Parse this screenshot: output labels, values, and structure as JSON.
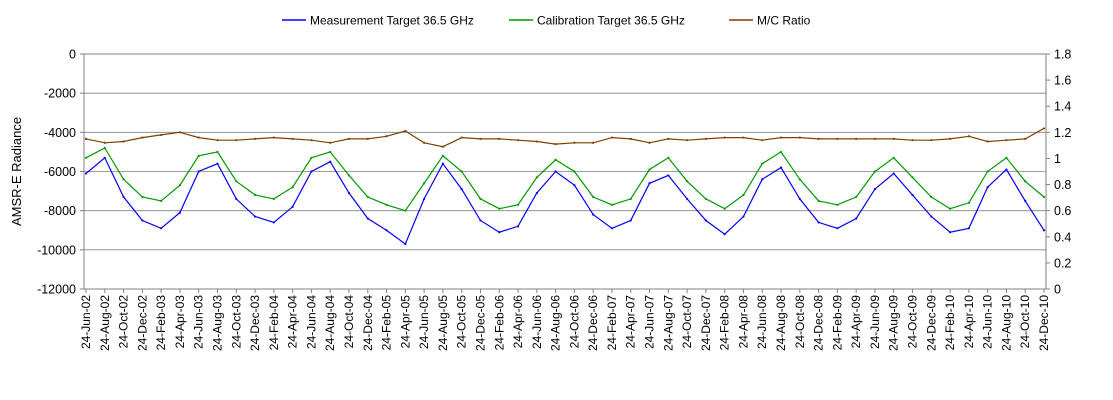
{
  "chart_data": {
    "type": "line",
    "title": "",
    "xlabel": "",
    "ylabel": "AMSR-E Radiance",
    "y2label": "",
    "ylim": [
      -12000,
      0
    ],
    "y2lim": [
      0,
      1.8
    ],
    "yticks": [
      "0",
      "-2000",
      "-4000",
      "-6000",
      "-8000",
      "-10000",
      "-12000"
    ],
    "y2ticks": [
      "1.8",
      "1.6",
      "1.4",
      "1.2",
      "1",
      "0.8",
      "0.6",
      "0.4",
      "0.2",
      "0"
    ],
    "grid": true,
    "legend": "top",
    "categories": [
      "24-Jun-02",
      "24-Aug-02",
      "24-Oct-02",
      "24-Dec-02",
      "24-Feb-03",
      "24-Apr-03",
      "24-Jun-03",
      "24-Aug-03",
      "24-Oct-03",
      "24-Dec-03",
      "24-Feb-04",
      "24-Apr-04",
      "24-Jun-04",
      "24-Aug-04",
      "24-Oct-04",
      "24-Dec-04",
      "24-Feb-05",
      "24-Apr-05",
      "24-Jun-05",
      "24-Aug-05",
      "24-Oct-05",
      "24-Dec-05",
      "24-Feb-06",
      "24-Apr-06",
      "24-Jun-06",
      "24-Aug-06",
      "24-Oct-06",
      "24-Dec-06",
      "24-Feb-07",
      "24-Apr-07",
      "24-Jun-07",
      "24-Aug-07",
      "24-Oct-07",
      "24-Dec-07",
      "24-Feb-08",
      "24-Apr-08",
      "24-Jun-08",
      "24-Aug-08",
      "24-Oct-08",
      "24-Dec-08",
      "24-Feb-09",
      "24-Apr-09",
      "24-Jun-09",
      "24-Aug-09",
      "24-Oct-09",
      "24-Dec-09",
      "24-Feb-10",
      "24-Apr-10",
      "24-Jun-10",
      "24-Aug-10",
      "24-Oct-10",
      "24-Dec-10"
    ],
    "series": [
      {
        "name": "Measurement Target 36.5 GHz",
        "axis": "left",
        "color": "#0000ff",
        "values": [
          -6100,
          -5300,
          -7300,
          -8500,
          -8900,
          -8100,
          -6000,
          -5600,
          -7400,
          -8300,
          -8600,
          -7800,
          -6000,
          -5500,
          -7100,
          -8400,
          -9000,
          -9700,
          -7400,
          -5600,
          -6900,
          -8500,
          -9100,
          -8800,
          -7100,
          -6000,
          -6700,
          -8200,
          -8900,
          -8500,
          -6600,
          -6200,
          -7400,
          -8500,
          -9200,
          -8300,
          -6400,
          -5800,
          -7400,
          -8600,
          -8900,
          -8400,
          -6900,
          -6100,
          -7200,
          -8300,
          -9100,
          -8900,
          -6800,
          -5900,
          -7500,
          -9000
        ]
      },
      {
        "name": "Calibration Target 36.5 GHz",
        "axis": "left",
        "color": "#009900",
        "values": [
          -5300,
          -4800,
          -6400,
          -7300,
          -7500,
          -6700,
          -5200,
          -5000,
          -6500,
          -7200,
          -7400,
          -6800,
          -5300,
          -5000,
          -6200,
          -7300,
          -7700,
          -8000,
          -6600,
          -5200,
          -6000,
          -7400,
          -7900,
          -7700,
          -6300,
          -5400,
          -6000,
          -7300,
          -7700,
          -7400,
          -5900,
          -5300,
          -6500,
          -7400,
          -7900,
          -7200,
          -5600,
          -5000,
          -6400,
          -7500,
          -7700,
          -7300,
          -6000,
          -5300,
          -6300,
          -7300,
          -7900,
          -7600,
          -6000,
          -5300,
          -6500,
          -7300
        ]
      },
      {
        "name": "M/C Ratio",
        "axis": "right",
        "color": "#7f3f00",
        "values": [
          1.15,
          1.12,
          1.13,
          1.16,
          1.18,
          1.2,
          1.16,
          1.14,
          1.14,
          1.15,
          1.16,
          1.15,
          1.14,
          1.12,
          1.15,
          1.15,
          1.17,
          1.21,
          1.12,
          1.09,
          1.16,
          1.15,
          1.15,
          1.14,
          1.13,
          1.11,
          1.12,
          1.12,
          1.16,
          1.15,
          1.12,
          1.15,
          1.14,
          1.15,
          1.16,
          1.16,
          1.14,
          1.16,
          1.16,
          1.15,
          1.15,
          1.15,
          1.15,
          1.15,
          1.14,
          1.14,
          1.15,
          1.17,
          1.13,
          1.14,
          1.15,
          1.23
        ]
      }
    ]
  }
}
